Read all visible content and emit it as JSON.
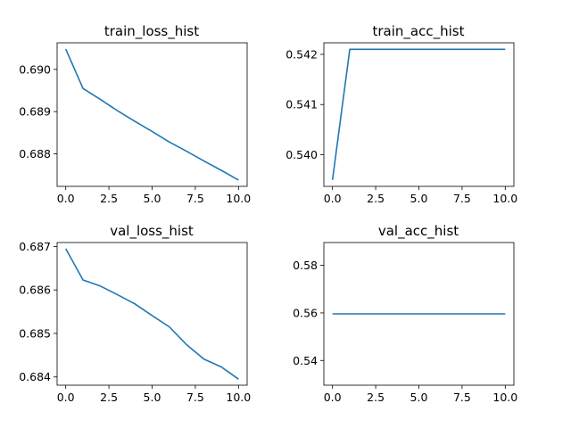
{
  "figure": {
    "line_color": "#1f77b4"
  },
  "chart_data": [
    {
      "type": "line",
      "title": "train_loss_hist",
      "x": [
        0,
        1,
        2,
        3,
        4,
        5,
        6,
        7,
        8,
        9,
        10
      ],
      "series": [
        {
          "values": [
            0.69048,
            0.68955,
            0.68929,
            0.68902,
            0.68877,
            0.68853,
            0.68828,
            0.68806,
            0.68783,
            0.68761,
            0.68738
          ]
        }
      ],
      "xlim": [
        -0.5,
        10.5
      ],
      "ylim": [
        0.68723,
        0.69063
      ],
      "xticks": [
        0.0,
        2.5,
        5.0,
        7.5,
        10.0
      ],
      "xtick_labels": [
        "0.0",
        "2.5",
        "5.0",
        "7.5",
        "10.0"
      ],
      "yticks": [
        0.688,
        0.689,
        0.69
      ],
      "ytick_labels": [
        "0.688",
        "0.689",
        "0.690"
      ]
    },
    {
      "type": "line",
      "title": "train_acc_hist",
      "x": [
        0,
        1,
        2,
        3,
        4,
        5,
        6,
        7,
        8,
        9,
        10
      ],
      "series": [
        {
          "values": [
            0.5395,
            0.5421,
            0.5421,
            0.5421,
            0.5421,
            0.5421,
            0.5421,
            0.5421,
            0.5421,
            0.5421,
            0.5421
          ]
        }
      ],
      "xlim": [
        -0.5,
        10.5
      ],
      "ylim": [
        0.53937,
        0.54223
      ],
      "xticks": [
        0.0,
        2.5,
        5.0,
        7.5,
        10.0
      ],
      "xtick_labels": [
        "0.0",
        "2.5",
        "5.0",
        "7.5",
        "10.0"
      ],
      "yticks": [
        0.54,
        0.541,
        0.542
      ],
      "ytick_labels": [
        "0.540",
        "0.541",
        "0.542"
      ]
    },
    {
      "type": "line",
      "title": "val_loss_hist",
      "x": [
        0,
        1,
        2,
        3,
        4,
        5,
        6,
        7,
        8,
        9,
        10
      ],
      "series": [
        {
          "values": [
            0.68695,
            0.68623,
            0.68609,
            0.68589,
            0.68568,
            0.68541,
            0.68515,
            0.68474,
            0.68441,
            0.68423,
            0.68395
          ]
        }
      ],
      "xlim": [
        -0.5,
        10.5
      ],
      "ylim": [
        0.68381,
        0.68709
      ],
      "xticks": [
        0.0,
        2.5,
        5.0,
        7.5,
        10.0
      ],
      "xtick_labels": [
        "0.0",
        "2.5",
        "5.0",
        "7.5",
        "10.0"
      ],
      "yticks": [
        0.684,
        0.685,
        0.686,
        0.687
      ],
      "ytick_labels": [
        "0.684",
        "0.685",
        "0.686",
        "0.687"
      ]
    },
    {
      "type": "line",
      "title": "val_acc_hist",
      "x": [
        0,
        1,
        2,
        3,
        4,
        5,
        6,
        7,
        8,
        9,
        10
      ],
      "series": [
        {
          "values": [
            0.5596,
            0.5596,
            0.5596,
            0.5596,
            0.5596,
            0.5596,
            0.5596,
            0.5596,
            0.5596,
            0.5596,
            0.5596
          ]
        }
      ],
      "xlim": [
        -0.5,
        10.5
      ],
      "ylim": [
        0.5296,
        0.5896
      ],
      "xticks": [
        0.0,
        2.5,
        5.0,
        7.5,
        10.0
      ],
      "xtick_labels": [
        "0.0",
        "2.5",
        "5.0",
        "7.5",
        "10.0"
      ],
      "yticks": [
        0.54,
        0.56,
        0.58
      ],
      "ytick_labels": [
        "0.54",
        "0.56",
        "0.58"
      ]
    }
  ]
}
